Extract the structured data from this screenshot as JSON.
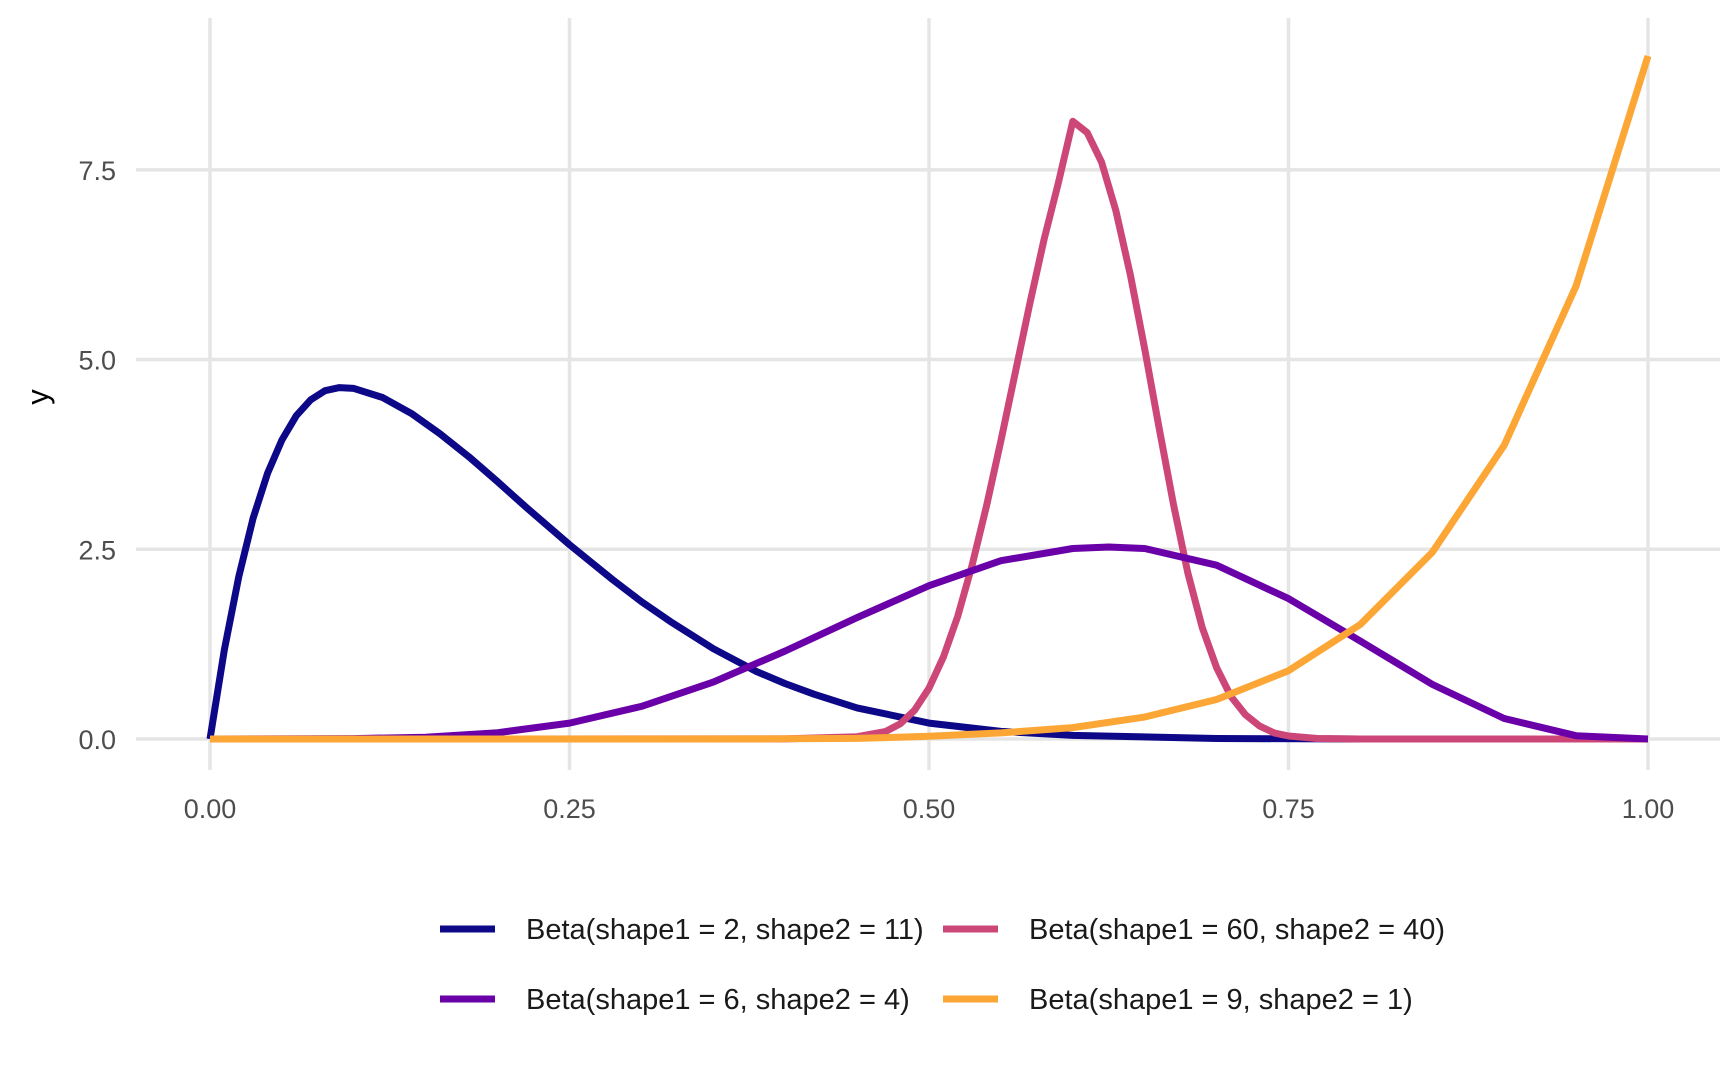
{
  "chart_data": {
    "type": "line",
    "xlabel": "",
    "ylabel": "y",
    "xlim": [
      0,
      1
    ],
    "ylim": [
      0,
      9
    ],
    "x_ticks": [
      "0.00",
      "0.25",
      "0.50",
      "0.75",
      "1.00"
    ],
    "y_ticks": [
      "0.0",
      "2.5",
      "5.0",
      "7.5"
    ],
    "grid": true,
    "legend_position": "bottom",
    "series": [
      {
        "name": "Beta(shape1 = 2, shape2 = 11)",
        "color": "#0d0887",
        "x": [
          0,
          0.01,
          0.02,
          0.03,
          0.04,
          0.05,
          0.06,
          0.07,
          0.08,
          0.09,
          0.1,
          0.12,
          0.14,
          0.16,
          0.18,
          0.2,
          0.22,
          0.25,
          0.28,
          0.3,
          0.32,
          0.35,
          0.38,
          0.4,
          0.42,
          0.45,
          0.5,
          0.55,
          0.6,
          0.7,
          0.8,
          0.9,
          1.0
        ],
        "y": [
          0,
          1.18,
          2.14,
          2.91,
          3.5,
          3.94,
          4.26,
          4.47,
          4.59,
          4.63,
          4.62,
          4.5,
          4.29,
          4.02,
          3.72,
          3.39,
          3.05,
          2.56,
          2.1,
          1.81,
          1.55,
          1.19,
          0.89,
          0.73,
          0.59,
          0.41,
          0.21,
          0.1,
          0.047,
          0.006,
          0.0004,
          0.0,
          0
        ]
      },
      {
        "name": "Beta(shape1 = 60, shape2 = 40)",
        "color": "#cc4778",
        "x": [
          0,
          0.4,
          0.45,
          0.47,
          0.48,
          0.49,
          0.5,
          0.51,
          0.52,
          0.53,
          0.54,
          0.55,
          0.56,
          0.57,
          0.58,
          0.59,
          0.6,
          0.61,
          0.62,
          0.63,
          0.64,
          0.65,
          0.66,
          0.67,
          0.68,
          0.69,
          0.7,
          0.71,
          0.72,
          0.73,
          0.74,
          0.75,
          0.77,
          0.8,
          1.0
        ],
        "y": [
          0,
          0.001,
          0.03,
          0.1,
          0.2,
          0.38,
          0.67,
          1.08,
          1.62,
          2.29,
          3.07,
          3.93,
          4.83,
          5.73,
          6.58,
          7.33,
          8.14,
          7.99,
          7.6,
          6.96,
          6.12,
          5.14,
          4.1,
          3.09,
          2.19,
          1.47,
          0.94,
          0.56,
          0.32,
          0.17,
          0.08,
          0.04,
          0.006,
          0.0004,
          0
        ]
      },
      {
        "name": "Beta(shape1 = 6, shape2 = 4)",
        "color": "#6a00a8",
        "x": [
          0,
          0.1,
          0.15,
          0.2,
          0.25,
          0.3,
          0.35,
          0.4,
          0.45,
          0.5,
          0.55,
          0.6,
          0.625,
          0.65,
          0.7,
          0.75,
          0.8,
          0.85,
          0.9,
          0.95,
          1.0
        ],
        "y": [
          0,
          0.005,
          0.024,
          0.083,
          0.21,
          0.43,
          0.75,
          1.16,
          1.6,
          2.02,
          2.35,
          2.51,
          2.53,
          2.51,
          2.29,
          1.85,
          1.29,
          0.72,
          0.27,
          0.043,
          0
        ]
      },
      {
        "name": "Beta(shape1 = 9, shape2 = 1)",
        "color": "#fca636",
        "x": [
          0,
          0.3,
          0.4,
          0.45,
          0.5,
          0.55,
          0.6,
          0.65,
          0.7,
          0.75,
          0.8,
          0.85,
          0.9,
          0.95,
          1.0
        ],
        "y": [
          0,
          0.0002,
          0.0024,
          0.0076,
          0.035,
          0.08,
          0.15,
          0.29,
          0.52,
          0.9,
          1.51,
          2.46,
          3.87,
          5.97,
          9.0
        ]
      }
    ]
  }
}
